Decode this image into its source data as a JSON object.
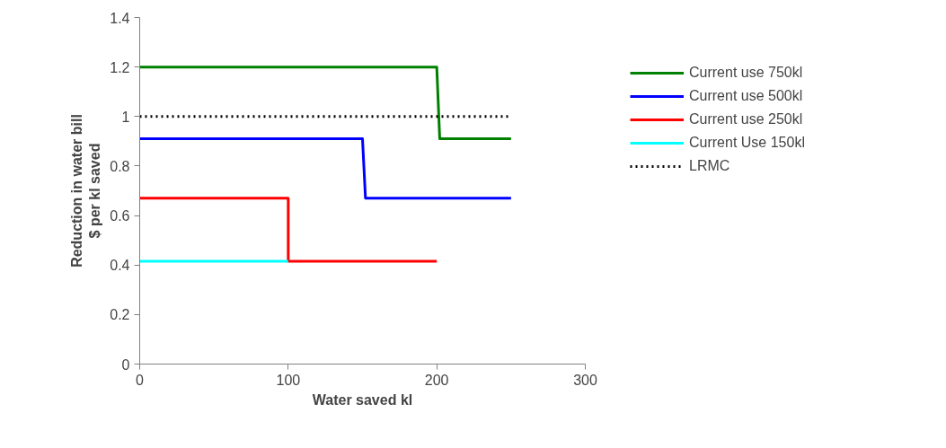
{
  "chart_data": {
    "type": "line",
    "xlabel": "Water saved kl",
    "ylabel": "Reduction in water bill\n$ per kl saved",
    "xlim": [
      0,
      300
    ],
    "xticks": [
      0,
      100,
      200,
      300
    ],
    "ylim": [
      0,
      1.4
    ],
    "yticks": [
      0,
      0.2,
      0.4,
      0.6,
      0.8,
      1,
      1.2,
      1.4
    ],
    "grid": false,
    "legend": "top right",
    "marker": "none",
    "series": [
      {
        "name": "Current use 750kl",
        "color": "#008000",
        "x": [
          0,
          200,
          202,
          250
        ],
        "values": [
          1.2,
          1.2,
          0.91,
          0.91
        ]
      },
      {
        "name": "Current use 500kl",
        "color": "#0000ff",
        "x": [
          0,
          150,
          152,
          250
        ],
        "values": [
          0.91,
          0.91,
          0.67,
          0.67
        ]
      },
      {
        "name": "Current use 250kl",
        "color": "#ff0000",
        "x": [
          0,
          100,
          100,
          200
        ],
        "values": [
          0.67,
          0.67,
          0.415,
          0.415
        ]
      },
      {
        "name": "Current Use 150kl",
        "color": "#00ffff",
        "x": [
          0,
          100
        ],
        "values": [
          0.415,
          0.415
        ]
      },
      {
        "name": "LRMC",
        "color": "#000000",
        "x": [
          0,
          250
        ],
        "values": [
          1,
          1
        ],
        "line_style": "dotted"
      }
    ]
  }
}
